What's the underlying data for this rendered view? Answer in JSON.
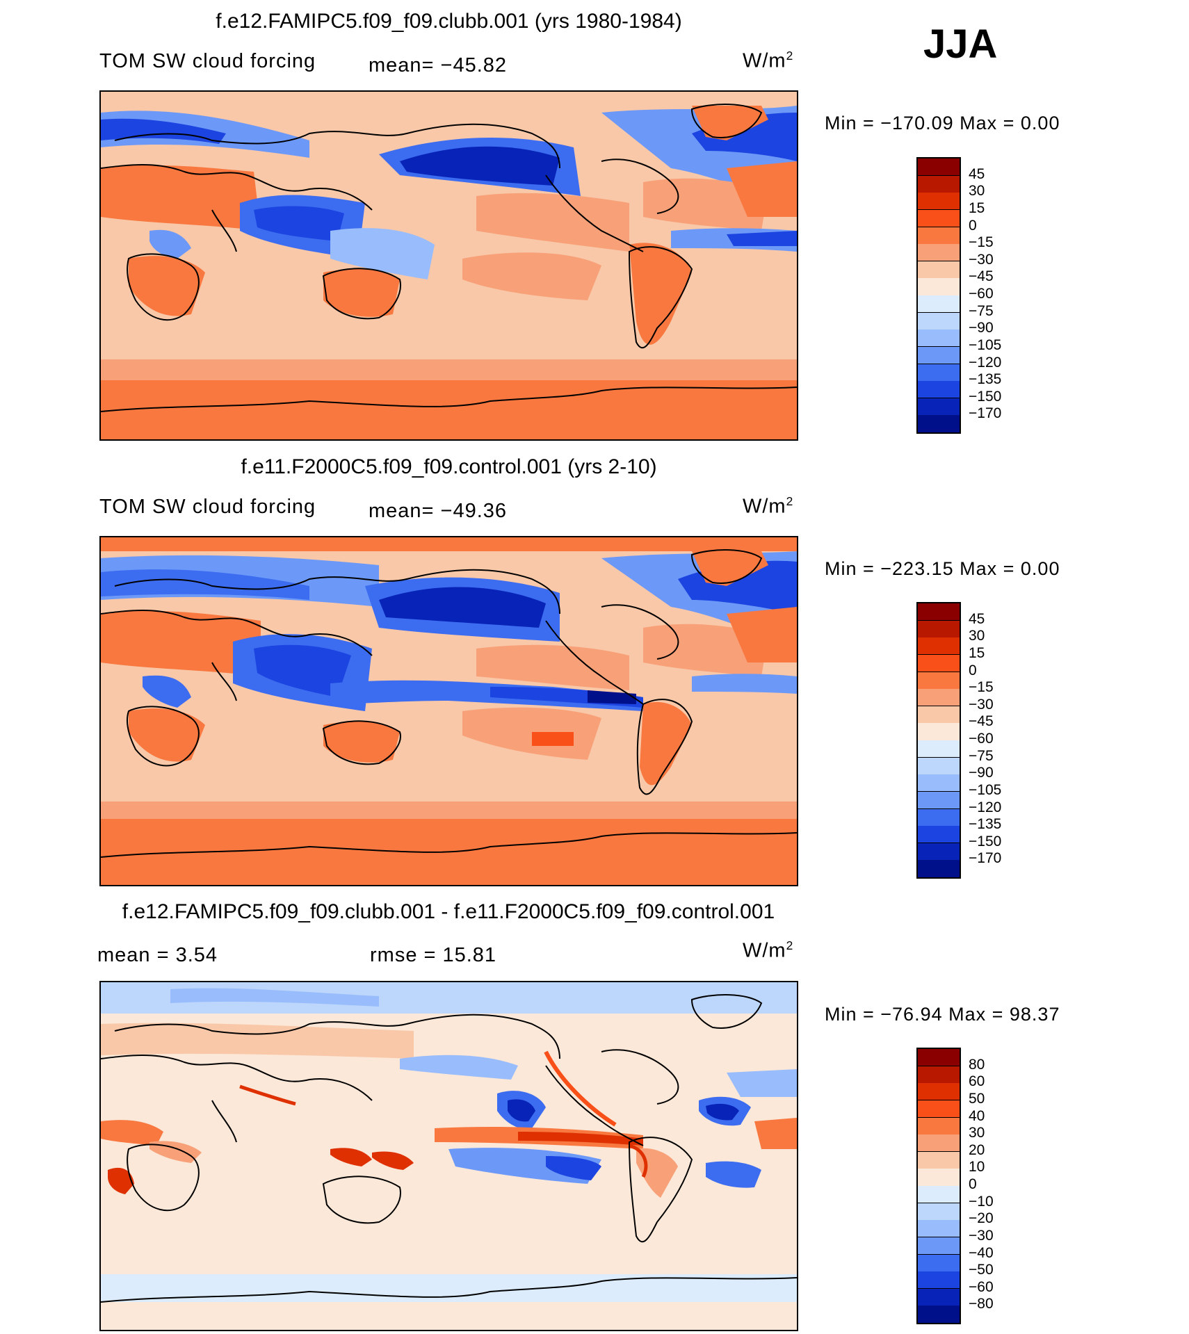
{
  "season": "JJA",
  "units_base": "W/m",
  "units_exp": "2",
  "panels": [
    {
      "title": "f.e12.FAMIPC5.f09_f09.clubb.001 (yrs 1980-1984)",
      "left_label": "TOM SW cloud forcing",
      "mid_label": "mean=  −45.82",
      "range_label": "Min  =  −170.09  Max  =      0.00",
      "colorbar": {
        "levels": [
          "45",
          "30",
          "15",
          "0",
          "−15",
          "−30",
          "−45",
          "−60",
          "−75",
          "−90",
          "−105",
          "−120",
          "−135",
          "−150",
          "−170"
        ],
        "colors": [
          "#8a0000",
          "#b81800",
          "#de3000",
          "#f85018",
          "#f87840",
          "#f8a078",
          "#f8c8a8",
          "#fce8d8",
          "#dcecfc",
          "#bcd6fc",
          "#98bcfc",
          "#6c98f8",
          "#3c6cf0",
          "#1c44e0",
          "#0824b8",
          "#00108a"
        ]
      }
    },
    {
      "title": "f.e11.F2000C5.f09_f09.control.001 (yrs 2-10)",
      "left_label": "TOM SW cloud forcing",
      "mid_label": "mean=  −49.36",
      "range_label": "Min  =  −223.15  Max  =      0.00",
      "colorbar": {
        "levels": [
          "45",
          "30",
          "15",
          "0",
          "−15",
          "−30",
          "−45",
          "−60",
          "−75",
          "−90",
          "−105",
          "−120",
          "−135",
          "−150",
          "−170"
        ],
        "colors": [
          "#8a0000",
          "#b81800",
          "#de3000",
          "#f85018",
          "#f87840",
          "#f8a078",
          "#f8c8a8",
          "#fce8d8",
          "#dcecfc",
          "#bcd6fc",
          "#98bcfc",
          "#6c98f8",
          "#3c6cf0",
          "#1c44e0",
          "#0824b8",
          "#00108a"
        ]
      }
    },
    {
      "title": "f.e12.FAMIPC5.f09_f09.clubb.001 - f.e11.F2000C5.f09_f09.control.001",
      "left_label": "mean  =      3.54",
      "mid_label": "rmse  =     15.81",
      "range_label": "Min  =  −76.94  Max  =    98.37",
      "colorbar": {
        "levels": [
          "80",
          "60",
          "50",
          "40",
          "30",
          "20",
          "10",
          "0",
          "−10",
          "−20",
          "−30",
          "−40",
          "−50",
          "−60",
          "−80"
        ],
        "colors": [
          "#8a0000",
          "#b81800",
          "#de3000",
          "#f85018",
          "#f87840",
          "#f8a078",
          "#f8c8a8",
          "#fce8d8",
          "#dcecfc",
          "#bcd6fc",
          "#98bcfc",
          "#6c98f8",
          "#3c6cf0",
          "#1c44e0",
          "#0824b8",
          "#00108a"
        ]
      }
    }
  ],
  "chart_data": [
    {
      "type": "heatmap",
      "title": "f.e12.FAMIPC5.f09_f09.clubb.001 (yrs 1980-1984)",
      "variable": "TOM SW cloud forcing",
      "units": "W/m2",
      "mean": -45.82,
      "min": -170.09,
      "max": 0.0,
      "contour_levels": [
        45,
        30,
        15,
        0,
        -15,
        -30,
        -45,
        -60,
        -75,
        -90,
        -105,
        -120,
        -135,
        -150,
        -170
      ]
    },
    {
      "type": "heatmap",
      "title": "f.e11.F2000C5.f09_f09.control.001 (yrs 2-10)",
      "variable": "TOM SW cloud forcing",
      "units": "W/m2",
      "mean": -49.36,
      "min": -223.15,
      "max": 0.0,
      "contour_levels": [
        45,
        30,
        15,
        0,
        -15,
        -30,
        -45,
        -60,
        -75,
        -90,
        -105,
        -120,
        -135,
        -150,
        -170
      ]
    },
    {
      "type": "heatmap",
      "title": "f.e12.FAMIPC5.f09_f09.clubb.001 - f.e11.F2000C5.f09_f09.control.001",
      "units": "W/m2",
      "mean": 3.54,
      "rmse": 15.81,
      "min": -76.94,
      "max": 98.37,
      "contour_levels": [
        80,
        60,
        50,
        40,
        30,
        20,
        10,
        0,
        -10,
        -20,
        -30,
        -40,
        -50,
        -60,
        -80
      ]
    }
  ]
}
